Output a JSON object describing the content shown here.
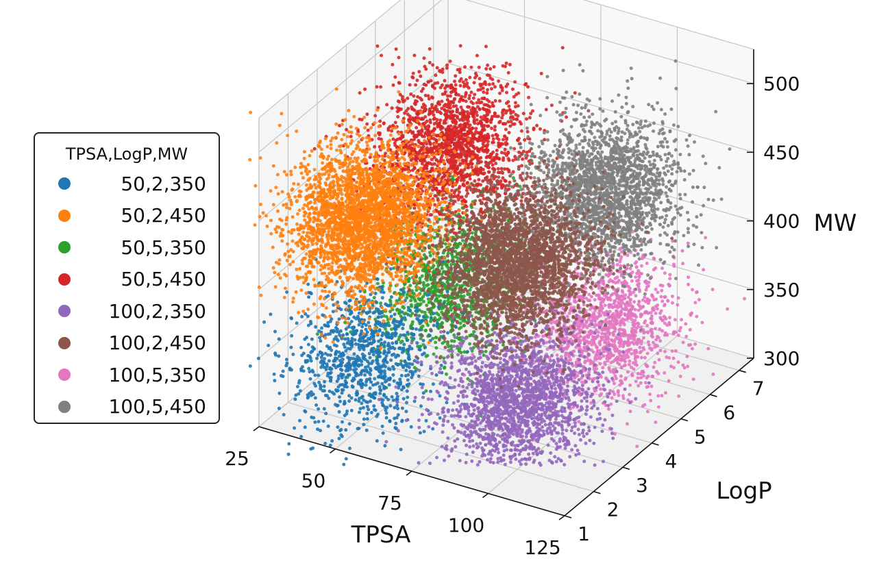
{
  "chart_data": {
    "type": "scatter",
    "projection": "3d",
    "xlabel": "TPSA",
    "ylabel": "LogP",
    "zlabel": "MW",
    "x_ticks": [
      "25",
      "50",
      "75",
      "100",
      "125"
    ],
    "y_ticks": [
      "1",
      "2",
      "3",
      "4",
      "5",
      "6",
      "7"
    ],
    "z_ticks": [
      "300",
      "350",
      "400",
      "450",
      "500"
    ],
    "xlim": [
      25,
      125
    ],
    "ylim": [
      1,
      7
    ],
    "zlim": [
      300,
      525
    ],
    "grid": true,
    "legend_title": "TPSA,LogP,MW",
    "legend_position": "left",
    "series": [
      {
        "name": "50,2,350",
        "color": "#1f77b4",
        "center": [
          50,
          2,
          350
        ],
        "count": 1000
      },
      {
        "name": "50,2,450",
        "color": "#ff7f0e",
        "center": [
          50,
          2,
          450
        ],
        "count": 3000
      },
      {
        "name": "50,5,350",
        "color": "#2ca02c",
        "center": [
          50,
          5,
          350
        ],
        "count": 1200
      },
      {
        "name": "50,5,450",
        "color": "#d62728",
        "center": [
          50,
          5,
          450
        ],
        "count": 1800
      },
      {
        "name": "100,2,350",
        "color": "#9467bd",
        "center": [
          100,
          2,
          350
        ],
        "count": 2000
      },
      {
        "name": "100,2,450",
        "color": "#8c564b",
        "center": [
          100,
          2,
          450
        ],
        "count": 3000
      },
      {
        "name": "100,5,350",
        "color": "#e377c2",
        "center": [
          100,
          5,
          350
        ],
        "count": 1400
      },
      {
        "name": "100,5,450",
        "color": "#7f7f7f",
        "center": [
          100,
          5,
          450
        ],
        "count": 2200
      }
    ]
  }
}
